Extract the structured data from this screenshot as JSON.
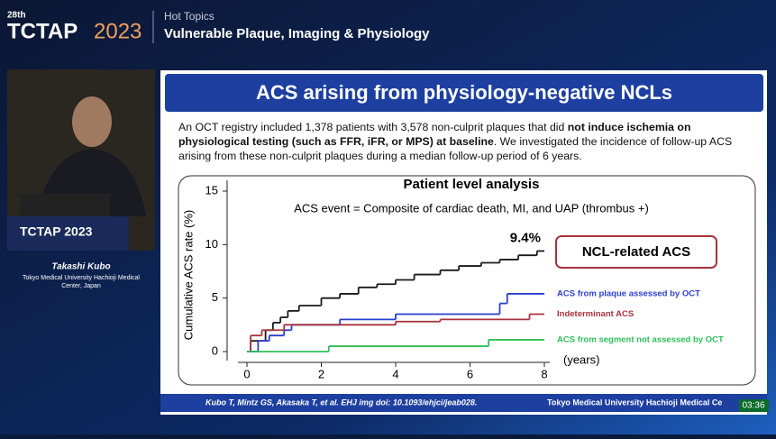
{
  "header": {
    "edition": "28th",
    "brand": "TCTAP",
    "year": "2023",
    "section": "Hot Topics",
    "session": "Vulnerable Plaque, Imaging & Physiology"
  },
  "speaker": {
    "podium_logo": "TCTAP 2023",
    "name": "Takashi Kubo",
    "affiliation": "Tokyo Medical University Hachioji Medical Center, Japan"
  },
  "slide": {
    "title": "ACS arising from physiology-negative NCLs",
    "intro": [
      {
        "text": "An OCT registry included 1,378 patients with 3,578 non-culprit plaques that did ",
        "bold": false
      },
      {
        "text": "not induce ischemia on physiological testing (such as FFR, iFR, or MPS) at baseline",
        "bold": true
      },
      {
        "text": ".  We investigated the incidence of follow-up ACS arising from these non-culprit plaques during a median follow-up period of 6 years.",
        "bold": false
      }
    ],
    "callout": "NCL-related ACS",
    "citation": "Kubo T, Mintz GS, Akasaka T, et al. EHJ img doi: 10.1093/ehjci/jeab028.",
    "institution": "Tokyo Medical University Hachioji Medical Ce"
  },
  "timer": "03:36",
  "chart_data": {
    "type": "step",
    "title": "Patient level analysis",
    "subtitle": "ACS event = Composite of cardiac death, MI, and UAP (thrombus +)",
    "ylabel": "Cumulative ACS rate (%)",
    "xlabel": "(years)",
    "annotation": "9.4%",
    "xlim": [
      0,
      8
    ],
    "ylim": [
      0,
      15
    ],
    "xticks": [
      0,
      2,
      4,
      6,
      8
    ],
    "yticks": [
      0,
      5,
      10,
      15
    ],
    "series": [
      {
        "name": "ACS",
        "color": "#1a1a1a",
        "x": [
          0,
          0.1,
          0.5,
          0.7,
          0.9,
          1.1,
          1.4,
          2,
          2.5,
          3,
          3.5,
          4,
          4.5,
          5.2,
          5.7,
          6.3,
          6.8,
          7.3,
          7.8
        ],
        "values": [
          0,
          1,
          2,
          2.7,
          3.2,
          3.8,
          4.3,
          5,
          5.4,
          6,
          6.3,
          6.7,
          7.2,
          7.6,
          8,
          8.3,
          8.6,
          9,
          9.4
        ]
      },
      {
        "name": "ACS from plaque assessed by OCT",
        "color": "#2b3fd0",
        "x": [
          0,
          0.3,
          0.6,
          1,
          1.2,
          2.5,
          4,
          6.8,
          7
        ],
        "values": [
          0,
          1,
          1.5,
          2,
          2.5,
          3,
          3.5,
          4.5,
          5.4
        ]
      },
      {
        "name": "Indeterminant ACS",
        "color": "#a8323c",
        "x": [
          0,
          0.1,
          0.4,
          1,
          4,
          5.2,
          7.6
        ],
        "values": [
          0,
          1.5,
          2,
          2.5,
          2.8,
          3,
          3.5
        ]
      },
      {
        "name": "ACS from segment not assessed by OCT",
        "color": "#2fbf5a",
        "x": [
          0,
          2.2,
          6.5
        ],
        "values": [
          0,
          0.5,
          1.1
        ]
      }
    ]
  }
}
